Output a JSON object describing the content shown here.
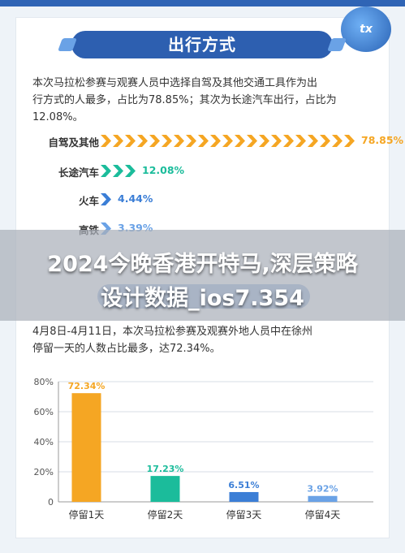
{
  "logo": {
    "text": "tx"
  },
  "section1": {
    "title": "出行方式",
    "paragraph_lines": [
      "本次马拉松参赛与观赛人员中选择自驾及其他交通工具作为出",
      "行方式的人最多，占比为78.85%；其次为长途汽车出行，占比为",
      "12.08%。"
    ],
    "rows": [
      {
        "label": "自驾及其他",
        "value": "78.85%",
        "chevrons": 21,
        "color": "#f5a623"
      },
      {
        "label": "长途汽车",
        "value": "12.08%",
        "chevrons": 3,
        "color": "#1bbc9b"
      },
      {
        "label": "火车",
        "value": "4.44%",
        "chevrons": 1,
        "color": "#3b7ed6"
      },
      {
        "label": "高铁",
        "value": "3.39%",
        "chevrons": 1,
        "color": "#6aa2e6"
      }
    ]
  },
  "overlay": {
    "line1": "2024今晚香港开特马,深层策略",
    "line2": "设计数据_ios7.354"
  },
  "section2": {
    "paragraph_lines": [
      "4月8日-4月11日，本次马拉松参赛及观赛外地人员中在徐州",
      "停留一天的人数占比最多，达72.34%。"
    ]
  },
  "chart_data": {
    "type": "bar",
    "categories": [
      "停留1天",
      "停留2天",
      "停留3天",
      "停留4天"
    ],
    "values": [
      72.34,
      17.23,
      6.51,
      3.92
    ],
    "value_labels": [
      "72.34%",
      "17.23%",
      "6.51%",
      "3.92%"
    ],
    "bar_colors": [
      "#f5a623",
      "#1bbc9b",
      "#3b7ed6",
      "#6aa2e6"
    ],
    "yticks": [
      "0",
      "20%",
      "40%",
      "60%",
      "80%"
    ],
    "ylim": [
      0,
      80
    ],
    "grid": true
  }
}
